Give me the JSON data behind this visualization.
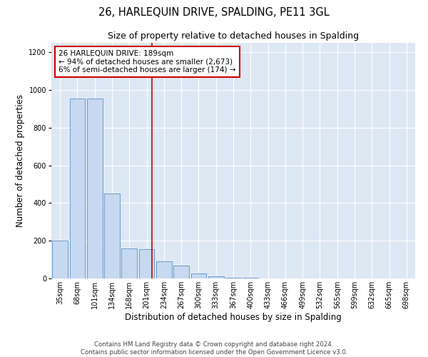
{
  "title_line1": "26, HARLEQUIN DRIVE, SPALDING, PE11 3GL",
  "title_line2": "Size of property relative to detached houses in Spalding",
  "xlabel": "Distribution of detached houses by size in Spalding",
  "ylabel": "Number of detached properties",
  "categories": [
    "35sqm",
    "68sqm",
    "101sqm",
    "134sqm",
    "168sqm",
    "201sqm",
    "234sqm",
    "267sqm",
    "300sqm",
    "333sqm",
    "367sqm",
    "400sqm",
    "433sqm",
    "466sqm",
    "499sqm",
    "532sqm",
    "565sqm",
    "599sqm",
    "632sqm",
    "665sqm",
    "698sqm"
  ],
  "values": [
    200,
    955,
    955,
    450,
    160,
    155,
    90,
    70,
    25,
    10,
    5,
    2,
    0,
    0,
    0,
    0,
    0,
    0,
    0,
    0,
    0
  ],
  "bar_color": "#c6d9f0",
  "bar_edge_color": "#5b8fc9",
  "annotation_box_text": "26 HARLEQUIN DRIVE: 189sqm\n← 94% of detached houses are smaller (2,673)\n6% of semi-detached houses are larger (174) →",
  "annotation_box_color": "#ffffff",
  "annotation_box_edge_color": "#cc0000",
  "vline_x_index": 5.3,
  "vline_color": "#cc0000",
  "ylim": [
    0,
    1250
  ],
  "yticks": [
    0,
    200,
    400,
    600,
    800,
    1000,
    1200
  ],
  "background_color": "#dde8f5",
  "footer_line1": "Contains HM Land Registry data © Crown copyright and database right 2024.",
  "footer_line2": "Contains public sector information licensed under the Open Government Licence v3.0.",
  "title_fontsize": 10.5,
  "subtitle_fontsize": 9,
  "tick_fontsize": 7,
  "ylabel_fontsize": 8.5,
  "xlabel_fontsize": 8.5,
  "footer_fontsize": 6.2,
  "annot_fontsize": 7.5
}
